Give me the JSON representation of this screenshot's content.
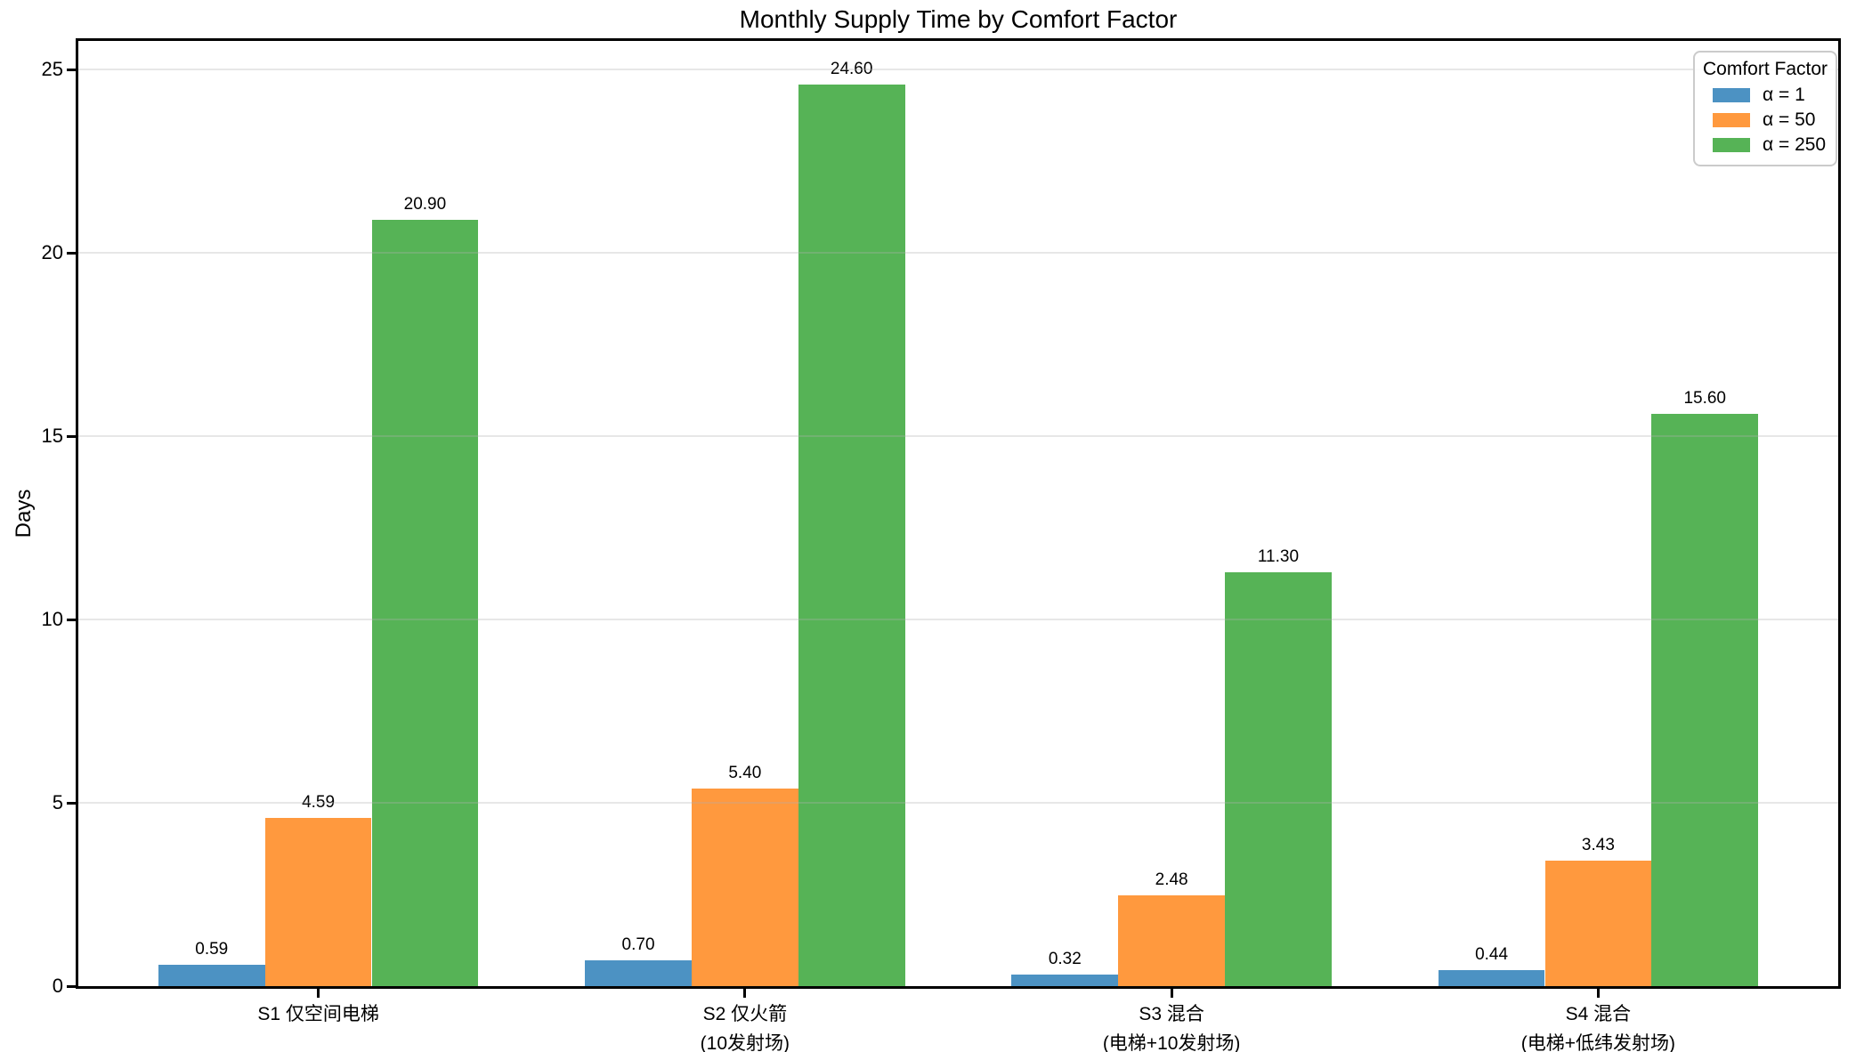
{
  "figure": {
    "background": "#ffffff"
  },
  "chart_data": {
    "type": "bar",
    "title": "Monthly Supply Time by Comfort Factor",
    "ylabel": "Days",
    "xlabel": "",
    "ylim": [
      0,
      25.78
    ],
    "yticks": [
      0,
      5,
      10,
      15,
      20,
      25
    ],
    "grid": "horizontal-y",
    "grid_color": "rgba(176,176,176,0.3)",
    "axis_color": "#000000",
    "categories": [
      {
        "id": "S1",
        "lines": [
          "S1 仅空间电梯"
        ]
      },
      {
        "id": "S2",
        "lines": [
          "S2 仅火箭",
          "(10发射场)"
        ]
      },
      {
        "id": "S3",
        "lines": [
          "S3 混合",
          "(电梯+10发射场)"
        ]
      },
      {
        "id": "S4",
        "lines": [
          "S4 混合",
          "(电梯+低纬发射场)"
        ]
      }
    ],
    "series": [
      {
        "name": "α = 1",
        "color": "#4C92C3",
        "values": [
          0.59,
          0.7,
          0.32,
          0.44
        ]
      },
      {
        "name": "α = 50",
        "color": "#FF993E",
        "values": [
          4.59,
          5.4,
          2.48,
          3.43
        ]
      },
      {
        "name": "α = 250",
        "color": "#56B356",
        "values": [
          20.9,
          24.6,
          11.3,
          15.6
        ]
      }
    ],
    "value_labels": [
      [
        "0.59",
        "4.59",
        "20.90"
      ],
      [
        "0.70",
        "5.40",
        "24.60"
      ],
      [
        "0.32",
        "2.48",
        "11.30"
      ],
      [
        "0.44",
        "3.43",
        "15.60"
      ]
    ],
    "legend": {
      "title": "Comfort Factor",
      "position": "upper right",
      "entries": [
        "α = 1",
        "α = 50",
        "α = 250"
      ]
    }
  }
}
